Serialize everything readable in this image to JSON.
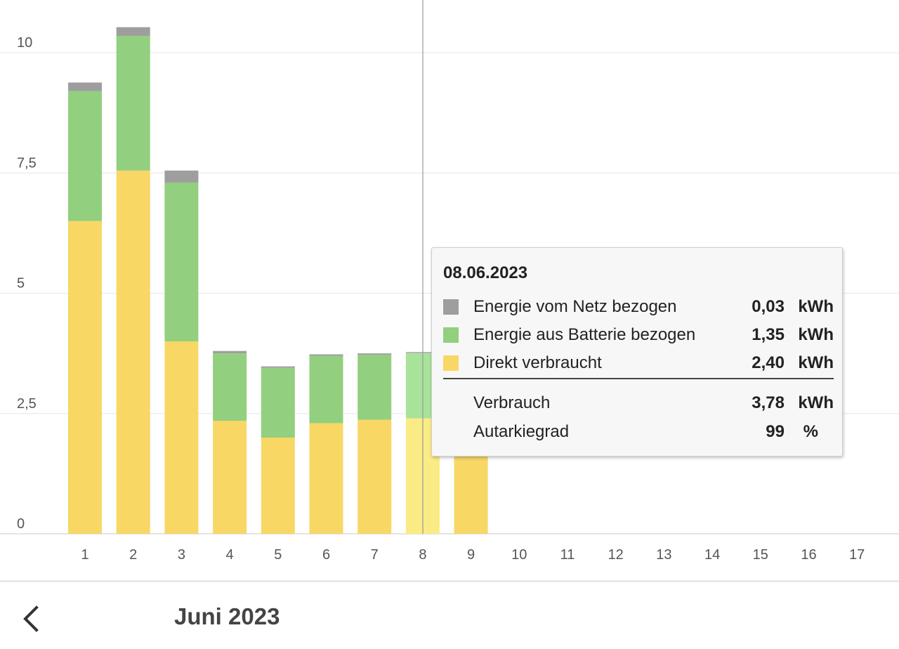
{
  "chart_data": {
    "type": "bar",
    "stacked": true,
    "categories": [
      "1",
      "2",
      "3",
      "4",
      "5",
      "6",
      "7",
      "8",
      "9",
      "10",
      "11",
      "12",
      "13",
      "14",
      "15",
      "16",
      "17"
    ],
    "y_ticks": [
      "0",
      "2,5",
      "5",
      "7,5",
      "10"
    ],
    "ylim": [
      0,
      10.5
    ],
    "grid": true,
    "highlighted_category": "8",
    "series": [
      {
        "name": "Direkt verbraucht",
        "color": "#f8d765",
        "highlight_color": "#fbeb84",
        "values": [
          6.5,
          7.55,
          4.0,
          2.35,
          2.0,
          2.3,
          2.37,
          2.4,
          2.5,
          null,
          null,
          null,
          null,
          null,
          null,
          null,
          null
        ]
      },
      {
        "name": "Energie aus Batterie bezogen",
        "color": "#92cf7f",
        "highlight_color": "#a8e39a",
        "values": [
          2.7,
          2.8,
          3.3,
          1.4,
          1.45,
          1.4,
          1.35,
          1.35,
          0,
          null,
          null,
          null,
          null,
          null,
          null,
          null,
          null
        ]
      },
      {
        "name": "Energie vom Netz bezogen",
        "color": "#9e9e9e",
        "highlight_color": "#b5b5b5",
        "values": [
          0.18,
          0.18,
          0.25,
          0.05,
          0.03,
          0.03,
          0.03,
          0.03,
          0,
          null,
          null,
          null,
          null,
          null,
          null,
          null,
          null
        ]
      }
    ]
  },
  "tooltip": {
    "date": "08.06.2023",
    "rows": [
      {
        "label": "Energie vom Netz bezogen",
        "value": "0,03",
        "unit": "kWh",
        "color": "#9e9e9e"
      },
      {
        "label": "Energie aus Batterie bezogen",
        "value": "1,35",
        "unit": "kWh",
        "color": "#92cf7f"
      },
      {
        "label": "Direkt verbraucht",
        "value": "2,40",
        "unit": "kWh",
        "color": "#f8d765"
      }
    ],
    "summary": [
      {
        "label": "Verbrauch",
        "value": "3,78",
        "unit": "kWh"
      },
      {
        "label": "Autarkiegrad",
        "value": "99",
        "unit": "%"
      }
    ]
  },
  "footer": {
    "month": "Juni 2023",
    "back_icon": "chevron-left-icon"
  }
}
